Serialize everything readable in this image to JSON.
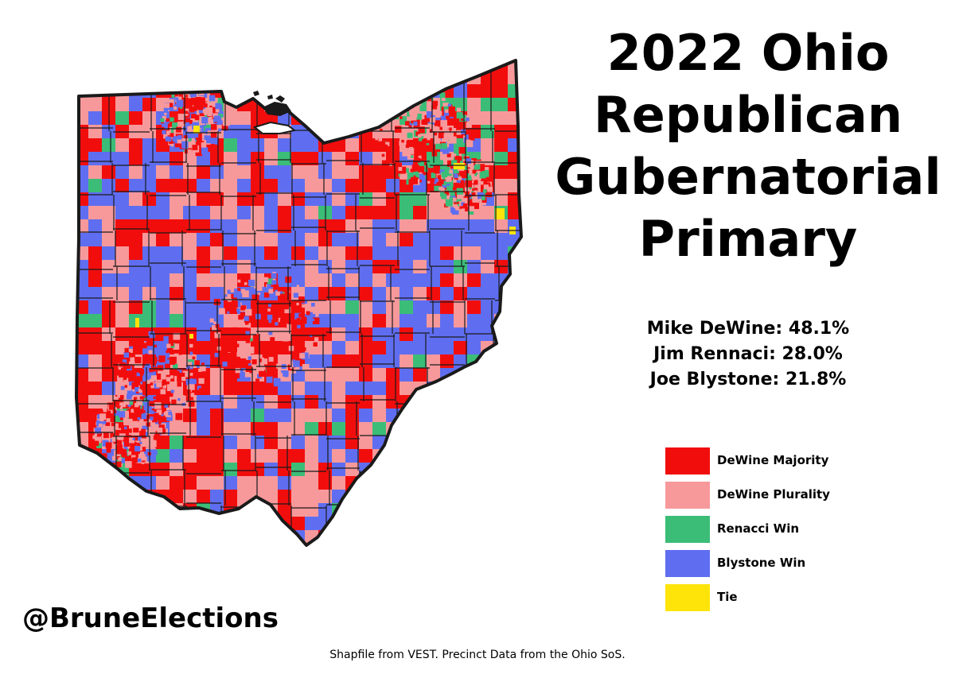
{
  "title_lines": [
    "2022 Ohio",
    "Republican",
    "Gubernatorial",
    "Primary"
  ],
  "results": [
    {
      "candidate": "Mike DeWine",
      "pct": "48.1%"
    },
    {
      "candidate": "Jim Rennaci",
      "pct": "28.0%"
    },
    {
      "candidate": "Joe Blystone",
      "pct": "21.8%"
    }
  ],
  "legend": [
    {
      "label": "DeWine Majority",
      "color": "#f20d0d"
    },
    {
      "label": "DeWine Plurality",
      "color": "#f7999b"
    },
    {
      "label": "Renacci Win",
      "color": "#3bbd78"
    },
    {
      "label": "Blystone Win",
      "color": "#5f6ef0"
    },
    {
      "label": "Tie",
      "color": "#ffe40a"
    }
  ],
  "map_colors": {
    "dewine_majority": "#f20d0d",
    "dewine_plurality": "#f7999b",
    "renacci_win": "#3bbd78",
    "blystone_win": "#5f6ef0",
    "tie": "#ffe40a",
    "lake": "#ffffff",
    "border": "#1a1a1a"
  },
  "handle": "@BruneElections",
  "credits": "Shapfile from VEST. Precinct Data from the Ohio SoS."
}
